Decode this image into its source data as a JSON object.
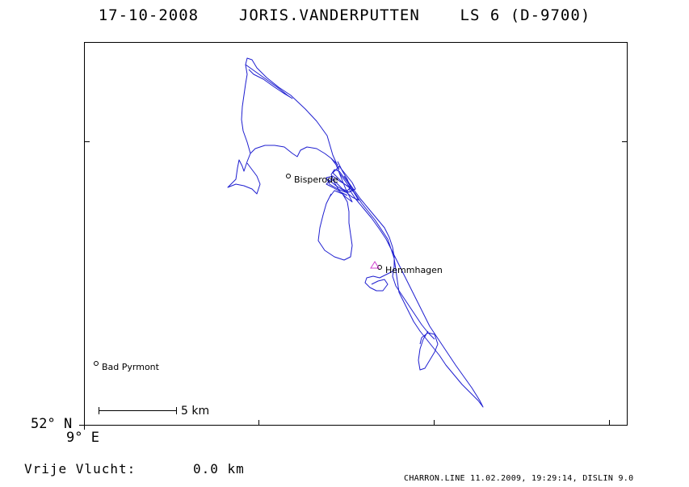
{
  "header": {
    "date": "17-10-2008",
    "pilot": "JORIS.VANDERPUTTEN",
    "glider": "LS 6 (D-9700)"
  },
  "map": {
    "track_color": "#1f1fd0",
    "marker_color": "#d040d0",
    "places": [
      {
        "name": "Bisperode"
      },
      {
        "name": "Hemmhagen"
      },
      {
        "name": "Bad Pyrmont"
      }
    ],
    "latitude_label": "52° N",
    "longitude_label": "9° E",
    "scale_label": "5 km"
  },
  "footer": {
    "distance_label": "Vrije Vlucht:",
    "distance_value": "0.0 km",
    "credit": "CHARRON.LINE 11.02.2009, 19:29:14, DISLIN 9.0"
  }
}
